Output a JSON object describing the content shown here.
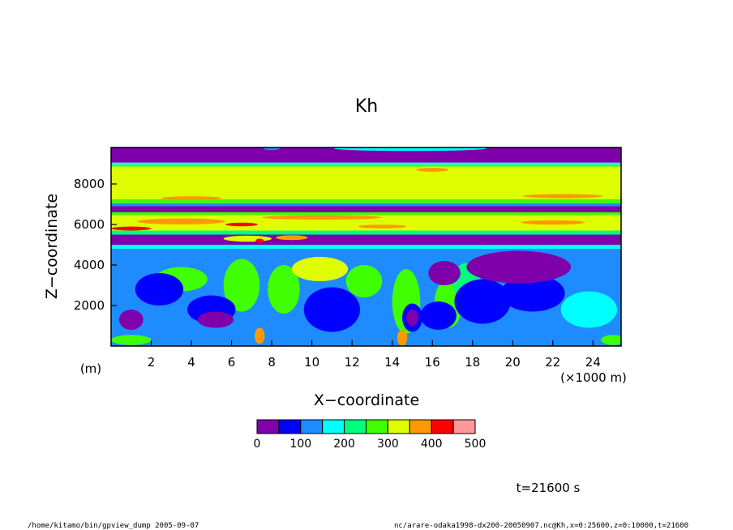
{
  "chart_data": {
    "type": "heatmap",
    "title": "Kh",
    "xlabel": "X−coordinate",
    "ylabel": "Z−coordinate",
    "x_unit": "(×1000 m)",
    "y_unit": "(m)",
    "xlim": [
      0,
      25.4
    ],
    "ylim": [
      0,
      9800
    ],
    "x_ticks": [
      "2",
      "4",
      "6",
      "8",
      "10",
      "12",
      "14",
      "16",
      "18",
      "20",
      "22",
      "24"
    ],
    "y_ticks": [
      "2000",
      "4000",
      "6000",
      "8000"
    ],
    "time_label": "t=21600 s",
    "colorbar": {
      "labels": [
        "0",
        "100",
        "200",
        "300",
        "400",
        "500"
      ],
      "levels": [
        0,
        50,
        100,
        150,
        200,
        250,
        300,
        350,
        400,
        450,
        500
      ],
      "colors": [
        "#7f00aa",
        "#0000ff",
        "#1e8cff",
        "#00ffff",
        "#00ff7f",
        "#40ff00",
        "#dfff00",
        "#ff9900",
        "#ff0000",
        "#ff9999"
      ]
    },
    "bands": [
      {
        "zmin": 9050,
        "zmax": 9800,
        "level": 0
      },
      {
        "zmin": 8950,
        "zmax": 9050,
        "level": 3
      },
      {
        "zmin": 8850,
        "zmax": 8950,
        "level": 5
      },
      {
        "zmin": 7250,
        "zmax": 8850,
        "level": 6
      },
      {
        "zmin": 7050,
        "zmax": 7250,
        "level": 5
      },
      {
        "zmin": 6900,
        "zmax": 7050,
        "level": 2
      },
      {
        "zmin": 6600,
        "zmax": 6900,
        "level": 0
      },
      {
        "zmin": 6450,
        "zmax": 6600,
        "level": 5
      },
      {
        "zmin": 5700,
        "zmax": 6450,
        "level": 6
      },
      {
        "zmin": 5500,
        "zmax": 5700,
        "level": 4
      },
      {
        "zmin": 5000,
        "zmax": 5500,
        "level": 0
      },
      {
        "zmin": 4800,
        "zmax": 5000,
        "level": 3
      },
      {
        "zmin": 0,
        "zmax": 4800,
        "level": 2
      }
    ],
    "patches": [
      {
        "x": 14.9,
        "z": 9750,
        "rx": 3.8,
        "rz": 120,
        "level": 3
      },
      {
        "x": 8.0,
        "z": 9750,
        "rx": 0.4,
        "rz": 80,
        "level": 2
      },
      {
        "x": 16.0,
        "z": 8700,
        "rx": 0.8,
        "rz": 100,
        "level": 7
      },
      {
        "x": 22.5,
        "z": 7400,
        "rx": 2.0,
        "rz": 100,
        "level": 7
      },
      {
        "x": 4.0,
        "z": 7300,
        "rx": 1.5,
        "rz": 90,
        "level": 7
      },
      {
        "x": 3.5,
        "z": 6150,
        "rx": 2.2,
        "rz": 150,
        "level": 7
      },
      {
        "x": 10.5,
        "z": 6350,
        "rx": 3.0,
        "rz": 110,
        "level": 7
      },
      {
        "x": 22.0,
        "z": 6100,
        "rx": 1.6,
        "rz": 110,
        "level": 7
      },
      {
        "x": 6.5,
        "z": 6000,
        "rx": 0.8,
        "rz": 90,
        "level": 8
      },
      {
        "x": 1.0,
        "z": 5800,
        "rx": 1.0,
        "rz": 100,
        "level": 8
      },
      {
        "x": 13.5,
        "z": 5900,
        "rx": 1.2,
        "rz": 90,
        "level": 7
      },
      {
        "x": 6.8,
        "z": 5300,
        "rx": 1.2,
        "rz": 150,
        "level": 6
      },
      {
        "x": 9.0,
        "z": 5350,
        "rx": 0.8,
        "rz": 120,
        "level": 7
      },
      {
        "x": 7.4,
        "z": 5200,
        "rx": 0.2,
        "rz": 100,
        "level": 8
      },
      {
        "x": 3.5,
        "z": 3300,
        "rx": 1.3,
        "rz": 600,
        "level": 5
      },
      {
        "x": 6.5,
        "z": 3000,
        "rx": 0.9,
        "rz": 1300,
        "level": 5
      },
      {
        "x": 8.6,
        "z": 2800,
        "rx": 0.8,
        "rz": 1200,
        "level": 5
      },
      {
        "x": 10.4,
        "z": 3800,
        "rx": 1.4,
        "rz": 600,
        "level": 6
      },
      {
        "x": 12.6,
        "z": 3200,
        "rx": 0.9,
        "rz": 800,
        "level": 5
      },
      {
        "x": 14.7,
        "z": 2200,
        "rx": 0.7,
        "rz": 1600,
        "level": 5
      },
      {
        "x": 16.8,
        "z": 2100,
        "rx": 0.7,
        "rz": 1200,
        "level": 5
      },
      {
        "x": 17.7,
        "z": 3200,
        "rx": 0.7,
        "rz": 900,
        "level": 4
      },
      {
        "x": 23.8,
        "z": 1800,
        "rx": 1.4,
        "rz": 900,
        "level": 3
      },
      {
        "x": 1.0,
        "z": 300,
        "rx": 1.0,
        "rz": 250,
        "level": 5
      },
      {
        "x": 25.0,
        "z": 300,
        "rx": 0.6,
        "rz": 250,
        "level": 5
      },
      {
        "x": 7.4,
        "z": 500,
        "rx": 0.25,
        "rz": 400,
        "level": 7
      },
      {
        "x": 14.5,
        "z": 400,
        "rx": 0.25,
        "rz": 400,
        "level": 7
      },
      {
        "x": 2.4,
        "z": 2800,
        "rx": 1.2,
        "rz": 800,
        "level": 1
      },
      {
        "x": 5.0,
        "z": 1800,
        "rx": 1.2,
        "rz": 700,
        "level": 1
      },
      {
        "x": 11.0,
        "z": 1800,
        "rx": 1.4,
        "rz": 1100,
        "level": 1
      },
      {
        "x": 16.3,
        "z": 1500,
        "rx": 0.9,
        "rz": 700,
        "level": 1
      },
      {
        "x": 18.5,
        "z": 2200,
        "rx": 1.4,
        "rz": 1100,
        "level": 1
      },
      {
        "x": 21.0,
        "z": 2600,
        "rx": 1.6,
        "rz": 900,
        "level": 1
      },
      {
        "x": 20.3,
        "z": 3900,
        "rx": 2.6,
        "rz": 800,
        "level": 0
      },
      {
        "x": 16.6,
        "z": 3600,
        "rx": 0.8,
        "rz": 600,
        "level": 0
      },
      {
        "x": 5.2,
        "z": 1300,
        "rx": 0.9,
        "rz": 400,
        "level": 0
      },
      {
        "x": 1.0,
        "z": 1300,
        "rx": 0.6,
        "rz": 500,
        "level": 0
      },
      {
        "x": 15.0,
        "z": 1400,
        "rx": 0.5,
        "rz": 700,
        "level": 1
      },
      {
        "x": 15.0,
        "z": 1400,
        "rx": 0.3,
        "rz": 400,
        "level": 0
      }
    ]
  },
  "footer": {
    "left": "/home/kitamo/bin/gpview_dump  2005-09-07",
    "right": "nc/arare-odaka1998-dx200-20050907.nc@Kh,x=0:25600,z=0:10000,t=21600"
  }
}
